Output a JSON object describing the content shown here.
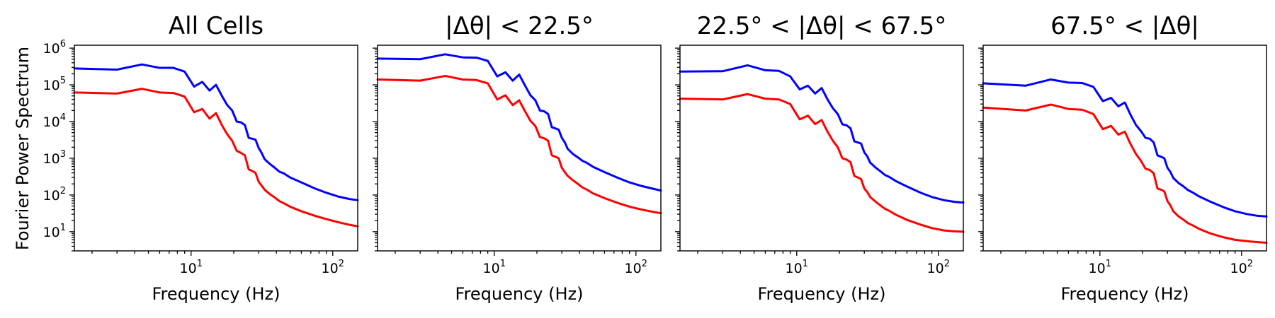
{
  "chart_data": {
    "type": "line",
    "ylabel": "Fourier Power Spectrum",
    "xlabel": "Frequency (Hz)",
    "xscale": "log",
    "yscale": "log",
    "xlim": [
      1.5,
      150
    ],
    "ylim": [
      3,
      1200000
    ],
    "x_ticks": [
      {
        "value": 10,
        "base": "10",
        "exp": "1"
      },
      {
        "value": 100,
        "base": "10",
        "exp": "2"
      }
    ],
    "y_ticks": [
      {
        "value": 10,
        "base": "10",
        "exp": "1"
      },
      {
        "value": 100,
        "base": "10",
        "exp": "2"
      },
      {
        "value": 1000,
        "base": "10",
        "exp": "3"
      },
      {
        "value": 10000,
        "base": "10",
        "exp": "4"
      },
      {
        "value": 100000,
        "base": "10",
        "exp": "5"
      },
      {
        "value": 1000000,
        "base": "10",
        "exp": "6"
      }
    ],
    "grid": false,
    "legend": "none",
    "series_colors": [
      "#0000ff",
      "#ff0000"
    ],
    "x": [
      1.5,
      3.0,
      4.5,
      6.0,
      7.5,
      9.0,
      10.5,
      12.0,
      13.5,
      15.0,
      16.5,
      18.0,
      19.5,
      21.0,
      22.5,
      24.0,
      25.5,
      27.0,
      28.5,
      30.0,
      31.5,
      33.0,
      36.0,
      39.0,
      42.0,
      45.0,
      50.0,
      60.0,
      75.0,
      90.0,
      110.0,
      130.0,
      150.0
    ],
    "panels": [
      {
        "title": "All Cells",
        "series": [
          {
            "values": [
              280000,
              260000,
              360000,
              290000,
              290000,
              230000,
              90000,
              120000,
              70000,
              100000,
              50000,
              28000,
              20000,
              10000,
              9500,
              8000,
              3600,
              3400,
              3200,
              1900,
              1400,
              950,
              700,
              550,
              430,
              390,
              300,
              220,
              150,
              115,
              90,
              78,
              72
            ]
          },
          {
            "values": [
              62000,
              58000,
              78000,
              62000,
              60000,
              48000,
              18000,
              22000,
              12000,
              17000,
              8000,
              4500,
              3000,
              1600,
              1400,
              1200,
              500,
              450,
              400,
              230,
              180,
              140,
              105,
              85,
              68,
              60,
              48,
              36,
              27,
              22,
              18,
              15.5,
              14
            ]
          }
        ]
      },
      {
        "title": "|Δθ| < 22.5°",
        "series": [
          {
            "values": [
              520000,
              500000,
              680000,
              560000,
              550000,
              450000,
              170000,
              220000,
              130000,
              190000,
              95000,
              52000,
              38000,
              20000,
              19000,
              16000,
              7000,
              6500,
              6000,
              3600,
              2700,
              1800,
              1300,
              1050,
              850,
              750,
              580,
              420,
              290,
              220,
              175,
              150,
              132
            ]
          },
          {
            "values": [
              140000,
              130000,
              175000,
              140000,
              135000,
              110000,
              40000,
              52000,
              28000,
              38000,
              19000,
              10500,
              7600,
              3800,
              3500,
              3000,
              1200,
              1100,
              1000,
              550,
              420,
              330,
              250,
              200,
              160,
              140,
              110,
              82,
              60,
              48,
              40,
              35,
              32
            ]
          }
        ]
      },
      {
        "title": "22.5° < |Δθ| < 67.5°",
        "series": [
          {
            "values": [
              230000,
              235000,
              340000,
              250000,
              240000,
              170000,
              75000,
              95000,
              58000,
              82000,
              40000,
              23000,
              16000,
              8400,
              7900,
              6500,
              2900,
              2700,
              2500,
              1450,
              1120,
              760,
              560,
              440,
              350,
              310,
              240,
              170,
              115,
              88,
              72,
              65,
              62
            ]
          },
          {
            "values": [
              42000,
              40000,
              56000,
              42000,
              40000,
              30000,
              11500,
              14500,
              8500,
              11000,
              5300,
              3000,
              2000,
              1000,
              920,
              780,
              330,
              300,
              270,
              150,
              120,
              88,
              66,
              52,
              42,
              37,
              29,
              21,
              15.5,
              12.5,
              10.8,
              10.2,
              10
            ]
          }
        ]
      },
      {
        "title": "67.5° < |Δθ|",
        "series": [
          {
            "values": [
              110000,
              95000,
              140000,
              115000,
              112000,
              88000,
              36000,
              44000,
              26000,
              33000,
              15000,
              8000,
              5500,
              3600,
              3400,
              2700,
              1200,
              1100,
              1000,
              550,
              420,
              290,
              210,
              170,
              135,
              118,
              92,
              66,
              46,
              36,
              30,
              27,
              26
            ]
          },
          {
            "values": [
              24000,
              20000,
              29000,
              22000,
              21000,
              16000,
              6200,
              7600,
              4400,
              5300,
              2400,
              1300,
              850,
              520,
              480,
              390,
              150,
              140,
              125,
              68,
              52,
              36,
              26,
              21,
              17,
              15,
              12,
              9,
              7,
              6,
              5.5,
              5.2,
              5
            ]
          }
        ]
      }
    ]
  }
}
